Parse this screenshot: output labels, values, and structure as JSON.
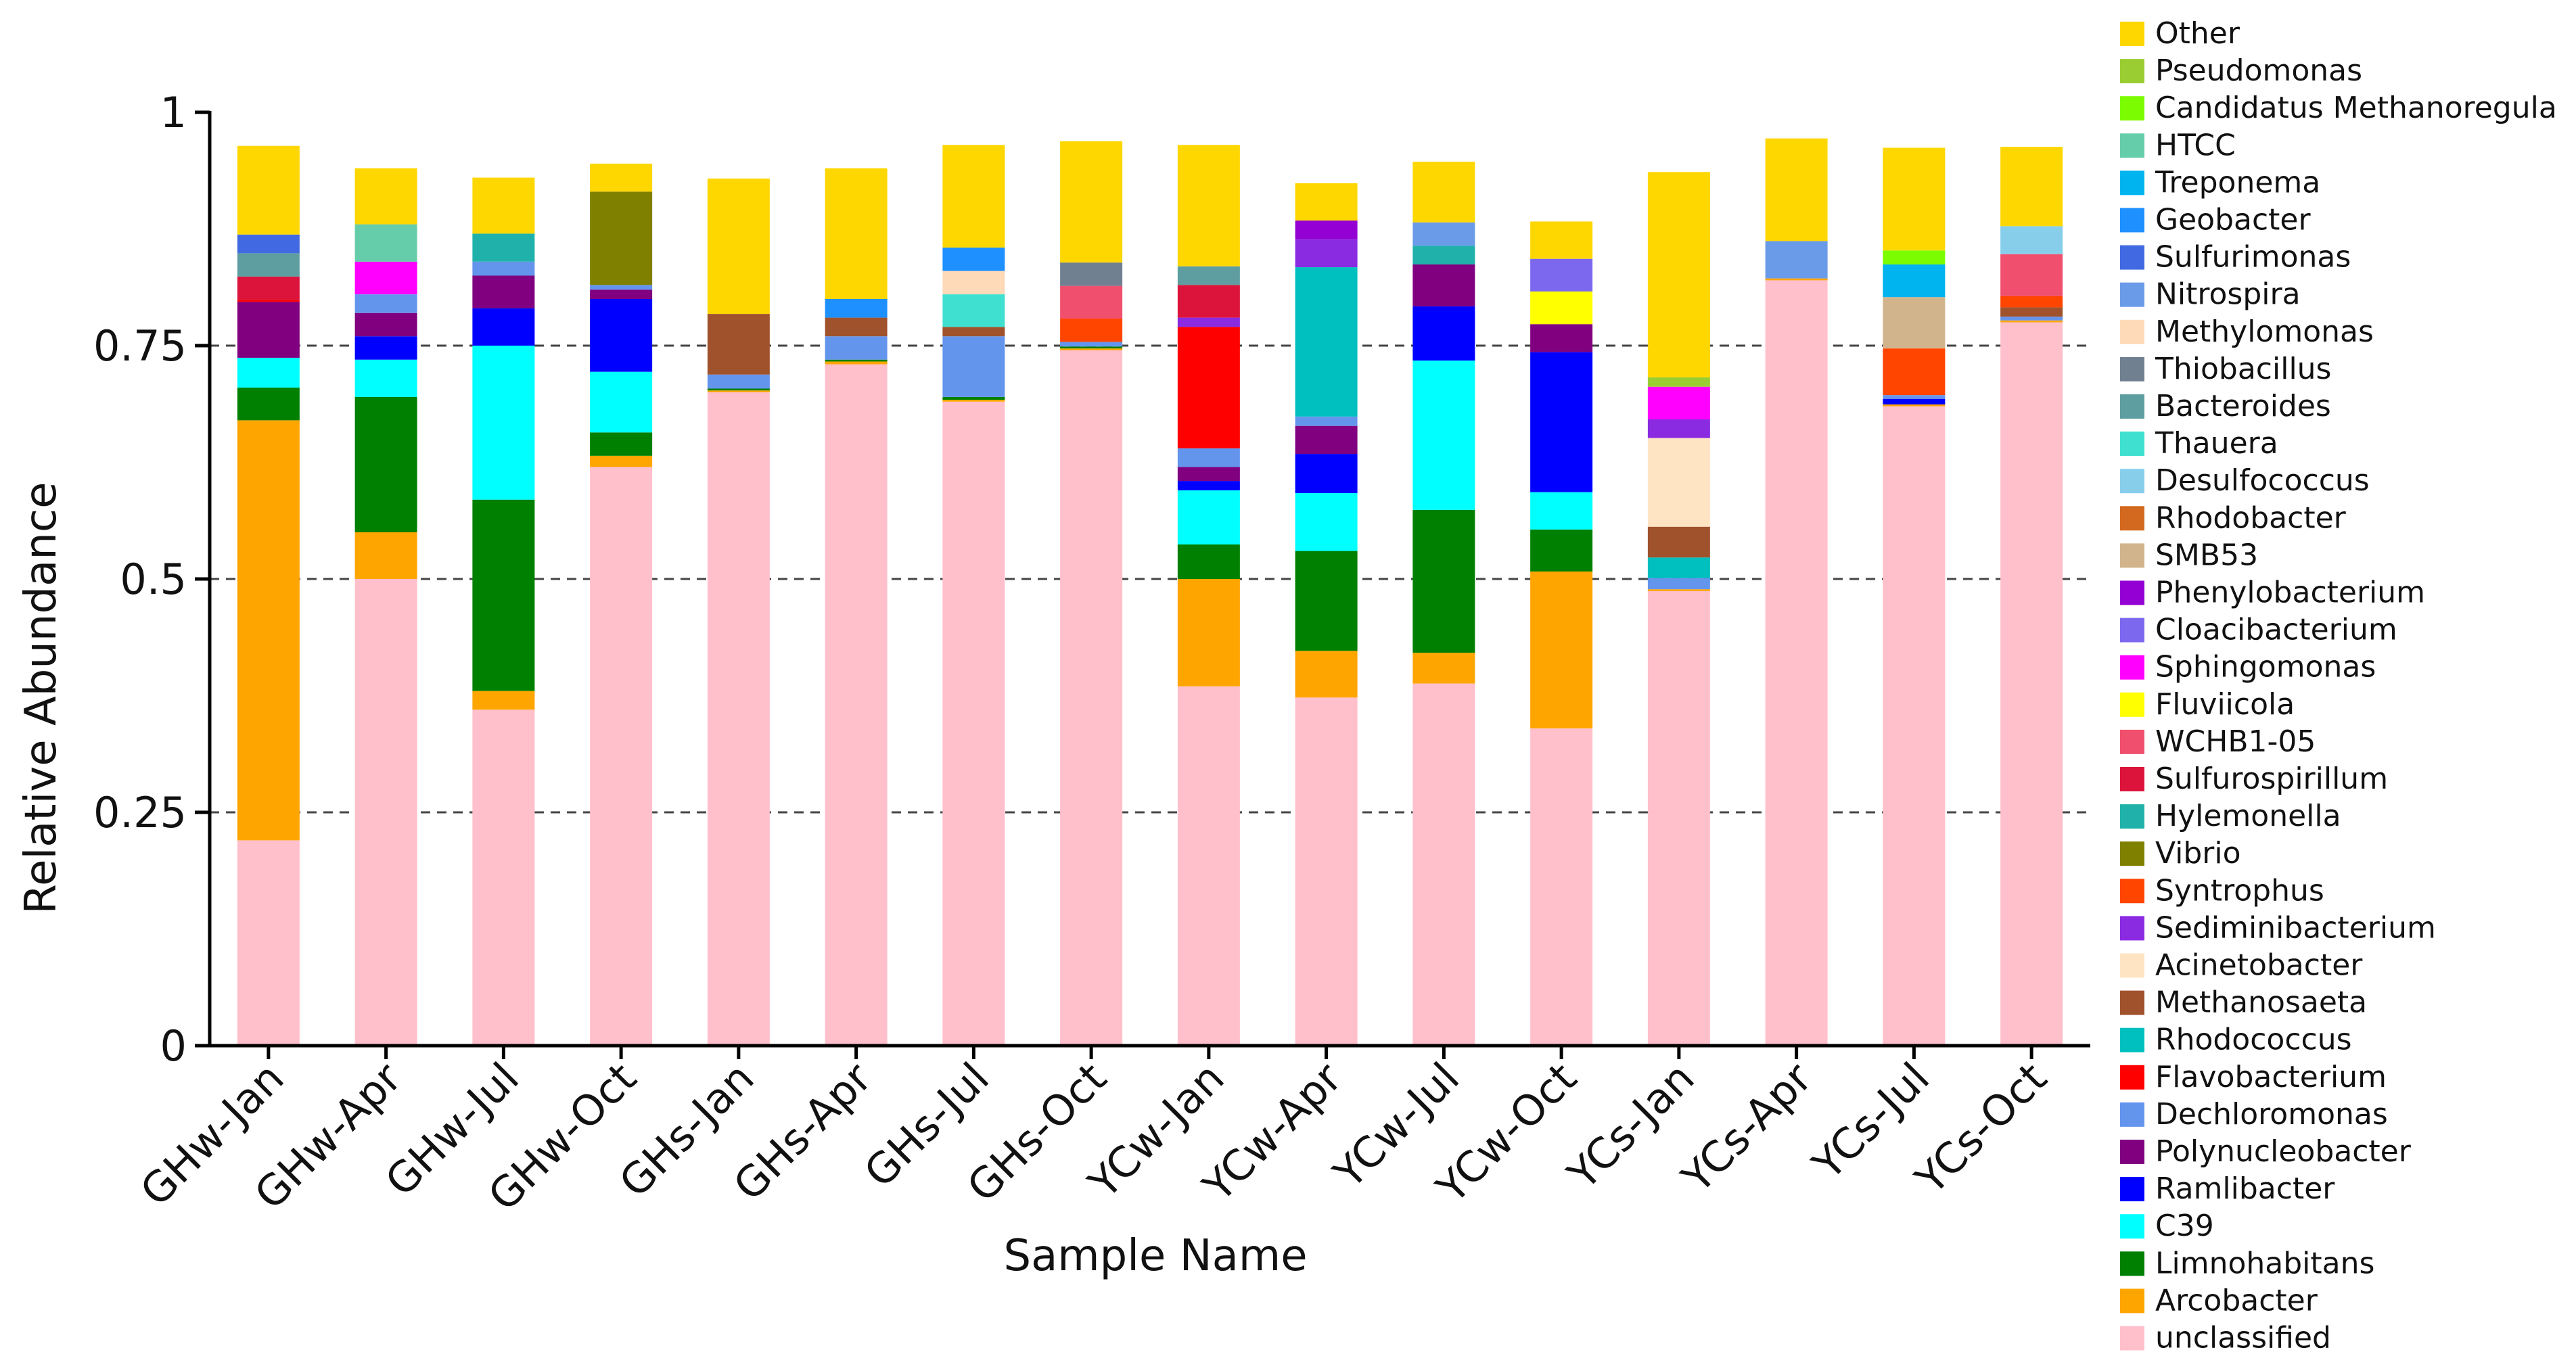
{
  "chart_data": {
    "type": "bar",
    "stacked": true,
    "xlabel": "Sample Name",
    "ylabel": "Relative Abundance",
    "ylim": [
      0,
      1
    ],
    "yticks": [
      0,
      0.25,
      0.5,
      0.75,
      1
    ],
    "ytick_labels": [
      "0",
      "0.25",
      "0.5",
      "0.75",
      "1"
    ],
    "grid": "dashed horizontal at 0.25, 0.5, 0.75",
    "legend_position": "right",
    "categories": [
      "GHw-Jan",
      "GHw-Apr",
      "GHw-Jul",
      "GHw-Oct",
      "GHs-Jan",
      "GHs-Apr",
      "GHs-Jul",
      "GHs-Oct",
      "YCw-Jan",
      "YCw-Apr",
      "YCw-Jul",
      "YCw-Oct",
      "YCs-Jan",
      "YCs-Apr",
      "YCs-Jul",
      "YCs-Oct"
    ],
    "series": [
      {
        "name": "unclassified",
        "color": "#FFC0CB",
        "values": [
          0.22,
          0.5,
          0.36,
          0.62,
          0.7,
          0.73,
          0.69,
          0.745,
          0.385,
          0.373,
          0.388,
          0.34,
          0.487,
          0.82,
          0.685,
          0.775
        ]
      },
      {
        "name": "Arcobacter",
        "color": "#FFA500",
        "values": [
          0.45,
          0.05,
          0.02,
          0.012,
          0.002,
          0.003,
          0.002,
          0.002,
          0.115,
          0.05,
          0.033,
          0.168,
          0.002,
          0.002,
          0.002,
          0.002
        ]
      },
      {
        "name": "Limnohabitans",
        "color": "#008000",
        "values": [
          0.035,
          0.145,
          0.205,
          0.025,
          0.002,
          0.002,
          0.003,
          0.002,
          0.037,
          0.107,
          0.153,
          0.045,
          0.0,
          0.0,
          0.0,
          0.0
        ]
      },
      {
        "name": "C39",
        "color": "#00FFFF",
        "values": [
          0.032,
          0.04,
          0.165,
          0.065,
          0.0,
          0.0,
          0.0,
          0.0,
          0.058,
          0.062,
          0.16,
          0.04,
          0.0,
          0.0,
          0.0,
          0.0
        ]
      },
      {
        "name": "Ramlibacter",
        "color": "#0000FF",
        "values": [
          0.0,
          0.025,
          0.04,
          0.078,
          0.0,
          0.0,
          0.0,
          0.0,
          0.01,
          0.042,
          0.058,
          0.15,
          0.0,
          0.0,
          0.006,
          0.0
        ]
      },
      {
        "name": "Polynucleobacter",
        "color": "#800080",
        "values": [
          0.06,
          0.025,
          0.035,
          0.01,
          0.0,
          0.0,
          0.0,
          0.0,
          0.015,
          0.03,
          0.045,
          0.03,
          0.0,
          0.0,
          0.0,
          0.0
        ]
      },
      {
        "name": "Dechloromonas",
        "color": "#6495ED",
        "values": [
          0.0,
          0.02,
          0.015,
          0.005,
          0.015,
          0.025,
          0.065,
          0.005,
          0.02,
          0.01,
          0.0,
          0.0,
          0.012,
          0.0,
          0.004,
          0.004
        ]
      },
      {
        "name": "Flavobacterium",
        "color": "#FF0000",
        "values": [
          0.002,
          0.0,
          0.0,
          0.0,
          0.0,
          0.0,
          0.0,
          0.0,
          0.13,
          0.0,
          0.0,
          0.0,
          0.0,
          0.0,
          0.0,
          0.0
        ]
      },
      {
        "name": "Rhodococcus",
        "color": "#00BFBF",
        "values": [
          0.0,
          0.0,
          0.0,
          0.0,
          0.0,
          0.0,
          0.0,
          0.0,
          0.0,
          0.16,
          0.0,
          0.0,
          0.022,
          0.0,
          0.0,
          0.0
        ]
      },
      {
        "name": "Methanosaeta",
        "color": "#A0522D",
        "values": [
          0.0,
          0.0,
          0.0,
          0.0,
          0.065,
          0.02,
          0.01,
          0.0,
          0.0,
          0.0,
          0.0,
          0.0,
          0.033,
          0.0,
          0.0,
          0.01
        ]
      },
      {
        "name": "Acinetobacter",
        "color": "#FFE4C4",
        "values": [
          0.0,
          0.0,
          0.0,
          0.0,
          0.0,
          0.0,
          0.0,
          0.0,
          0.0,
          0.0,
          0.0,
          0.0,
          0.095,
          0.0,
          0.0,
          0.0
        ]
      },
      {
        "name": "Sediminibacterium",
        "color": "#8A2BE2",
        "values": [
          0.0,
          0.0,
          0.0,
          0.0,
          0.0,
          0.0,
          0.0,
          0.0,
          0.01,
          0.03,
          0.0,
          0.0,
          0.02,
          0.0,
          0.0,
          0.0
        ]
      },
      {
        "name": "Syntrophus",
        "color": "#FF4500",
        "values": [
          0.0,
          0.0,
          0.0,
          0.0,
          0.0,
          0.0,
          0.0,
          0.025,
          0.0,
          0.0,
          0.0,
          0.0,
          0.0,
          0.0,
          0.05,
          0.012
        ]
      },
      {
        "name": "Vibrio",
        "color": "#808000",
        "values": [
          0.0,
          0.0,
          0.0,
          0.1,
          0.0,
          0.0,
          0.0,
          0.0,
          0.0,
          0.0,
          0.0,
          0.0,
          0.0,
          0.0,
          0.0,
          0.0
        ]
      },
      {
        "name": "Hylemonella",
        "color": "#20B2AA",
        "values": [
          0.0,
          0.0,
          0.03,
          0.0,
          0.0,
          0.0,
          0.0,
          0.0,
          0.0,
          0.0,
          0.02,
          0.0,
          0.0,
          0.0,
          0.0,
          0.0
        ]
      },
      {
        "name": "Sulfurospirillum",
        "color": "#DC143C",
        "values": [
          0.025,
          0.0,
          0.0,
          0.0,
          0.0,
          0.0,
          0.0,
          0.0,
          0.035,
          0.0,
          0.0,
          0.0,
          0.0,
          0.0,
          0.0,
          0.0
        ]
      },
      {
        "name": "WCHB1-05",
        "color": "#F0506E",
        "values": [
          0.0,
          0.0,
          0.0,
          0.0,
          0.0,
          0.0,
          0.0,
          0.035,
          0.0,
          0.0,
          0.0,
          0.0,
          0.0,
          0.0,
          0.0,
          0.045
        ]
      },
      {
        "name": "Fluviicola",
        "color": "#FFFF00",
        "values": [
          0.0,
          0.0,
          0.0,
          0.0,
          0.0,
          0.0,
          0.0,
          0.0,
          0.0,
          0.0,
          0.0,
          0.035,
          0.0,
          0.0,
          0.0,
          0.0
        ]
      },
      {
        "name": "Sphingomonas",
        "color": "#FF00FF",
        "values": [
          0.0,
          0.035,
          0.0,
          0.0,
          0.0,
          0.0,
          0.0,
          0.0,
          0.0,
          0.0,
          0.0,
          0.0,
          0.035,
          0.0,
          0.0,
          0.0
        ]
      },
      {
        "name": "Cloacibacterium",
        "color": "#7B68EE",
        "values": [
          0.0,
          0.0,
          0.0,
          0.0,
          0.0,
          0.0,
          0.0,
          0.0,
          0.0,
          0.0,
          0.0,
          0.035,
          0.0,
          0.0,
          0.0,
          0.0
        ]
      },
      {
        "name": "Phenylobacterium",
        "color": "#9400D3",
        "values": [
          0.0,
          0.0,
          0.0,
          0.0,
          0.0,
          0.0,
          0.0,
          0.0,
          0.0,
          0.02,
          0.0,
          0.0,
          0.0,
          0.0,
          0.0,
          0.0
        ]
      },
      {
        "name": "SMB53",
        "color": "#D2B48C",
        "values": [
          0.0,
          0.0,
          0.0,
          0.0,
          0.0,
          0.0,
          0.0,
          0.0,
          0.0,
          0.0,
          0.0,
          0.0,
          0.0,
          0.0,
          0.055,
          0.0
        ]
      },
      {
        "name": "Rhodobacter",
        "color": "#D2691E",
        "values": [
          0.0,
          0.0,
          0.0,
          0.0,
          0.0,
          0.0,
          0.0,
          0.0,
          0.0,
          0.0,
          0.0,
          0.0,
          0.0,
          0.0,
          0.0,
          0.0
        ]
      },
      {
        "name": "Desulfococcus",
        "color": "#87CEEB",
        "values": [
          0.0,
          0.0,
          0.0,
          0.0,
          0.0,
          0.0,
          0.0,
          0.0,
          0.0,
          0.0,
          0.0,
          0.0,
          0.0,
          0.0,
          0.0,
          0.03
        ]
      },
      {
        "name": "Thauera",
        "color": "#40E0D0",
        "values": [
          0.0,
          0.0,
          0.0,
          0.0,
          0.0,
          0.0,
          0.035,
          0.0,
          0.0,
          0.0,
          0.0,
          0.0,
          0.0,
          0.0,
          0.0,
          0.0
        ]
      },
      {
        "name": "Bacteroides",
        "color": "#5F9EA0",
        "values": [
          0.025,
          0.0,
          0.0,
          0.0,
          0.0,
          0.0,
          0.0,
          0.0,
          0.02,
          0.0,
          0.0,
          0.0,
          0.0,
          0.0,
          0.0,
          0.0
        ]
      },
      {
        "name": "Thiobacillus",
        "color": "#708090",
        "values": [
          0.0,
          0.0,
          0.0,
          0.0,
          0.0,
          0.0,
          0.0,
          0.025,
          0.0,
          0.0,
          0.0,
          0.0,
          0.0,
          0.0,
          0.0,
          0.0
        ]
      },
      {
        "name": "Methylomonas",
        "color": "#FFDAB9",
        "values": [
          0.0,
          0.0,
          0.0,
          0.0,
          0.0,
          0.0,
          0.025,
          0.0,
          0.0,
          0.0,
          0.0,
          0.0,
          0.0,
          0.0,
          0.0,
          0.0
        ]
      },
      {
        "name": "Nitrospira",
        "color": "#6A9BE8",
        "values": [
          0.0,
          0.0,
          0.0,
          0.0,
          0.0,
          0.0,
          0.0,
          0.0,
          0.0,
          0.0,
          0.025,
          0.0,
          0.0,
          0.04,
          0.0,
          0.0
        ]
      },
      {
        "name": "Sulfurimonas",
        "color": "#4169E1",
        "values": [
          0.02,
          0.0,
          0.0,
          0.0,
          0.0,
          0.0,
          0.0,
          0.0,
          0.0,
          0.0,
          0.0,
          0.0,
          0.0,
          0.0,
          0.0,
          0.0
        ]
      },
      {
        "name": "Geobacter",
        "color": "#1E90FF",
        "values": [
          0.0,
          0.0,
          0.0,
          0.0,
          0.0,
          0.02,
          0.025,
          0.0,
          0.0,
          0.0,
          0.0,
          0.0,
          0.0,
          0.0,
          0.0,
          0.0
        ]
      },
      {
        "name": "Treponema",
        "color": "#00B4F0",
        "values": [
          0.0,
          0.0,
          0.0,
          0.0,
          0.0,
          0.0,
          0.0,
          0.0,
          0.0,
          0.0,
          0.0,
          0.0,
          0.0,
          0.0,
          0.035,
          0.0
        ]
      },
      {
        "name": "HTCC",
        "color": "#66CDAA",
        "values": [
          0.0,
          0.04,
          0.0,
          0.0,
          0.0,
          0.0,
          0.0,
          0.0,
          0.0,
          0.0,
          0.0,
          0.0,
          0.0,
          0.0,
          0.0,
          0.0
        ]
      },
      {
        "name": "Candidatus Methanoregula",
        "color": "#7CFC00",
        "values": [
          0.0,
          0.0,
          0.0,
          0.0,
          0.0,
          0.0,
          0.0,
          0.0,
          0.0,
          0.0,
          0.0,
          0.0,
          0.0,
          0.0,
          0.015,
          0.0
        ]
      },
      {
        "name": "Pseudomonas",
        "color": "#9ACD32",
        "values": [
          0.0,
          0.0,
          0.0,
          0.0,
          0.0,
          0.0,
          0.0,
          0.0,
          0.0,
          0.0,
          0.0,
          0.0,
          0.01,
          0.0,
          0.0,
          0.0
        ]
      },
      {
        "name": "Other",
        "color": "#FFD700",
        "values": [
          0.095,
          0.06,
          0.06,
          0.03,
          0.145,
          0.14,
          0.11,
          0.13,
          0.13,
          0.04,
          0.065,
          0.04,
          0.22,
          0.11,
          0.11,
          0.085
        ]
      }
    ],
    "minor_series_color_palette": [
      "#66CDAA",
      "#4169E1",
      "#1E90FF",
      "#5F9EA0",
      "#708090",
      "#40E0D0",
      "#87CEEB",
      "#D2B48C",
      "#7B68EE",
      "#9400D3",
      "#DC143C",
      "#20B2AA",
      "#FF4500",
      "#A0522D",
      "#FFE4C4"
    ]
  }
}
